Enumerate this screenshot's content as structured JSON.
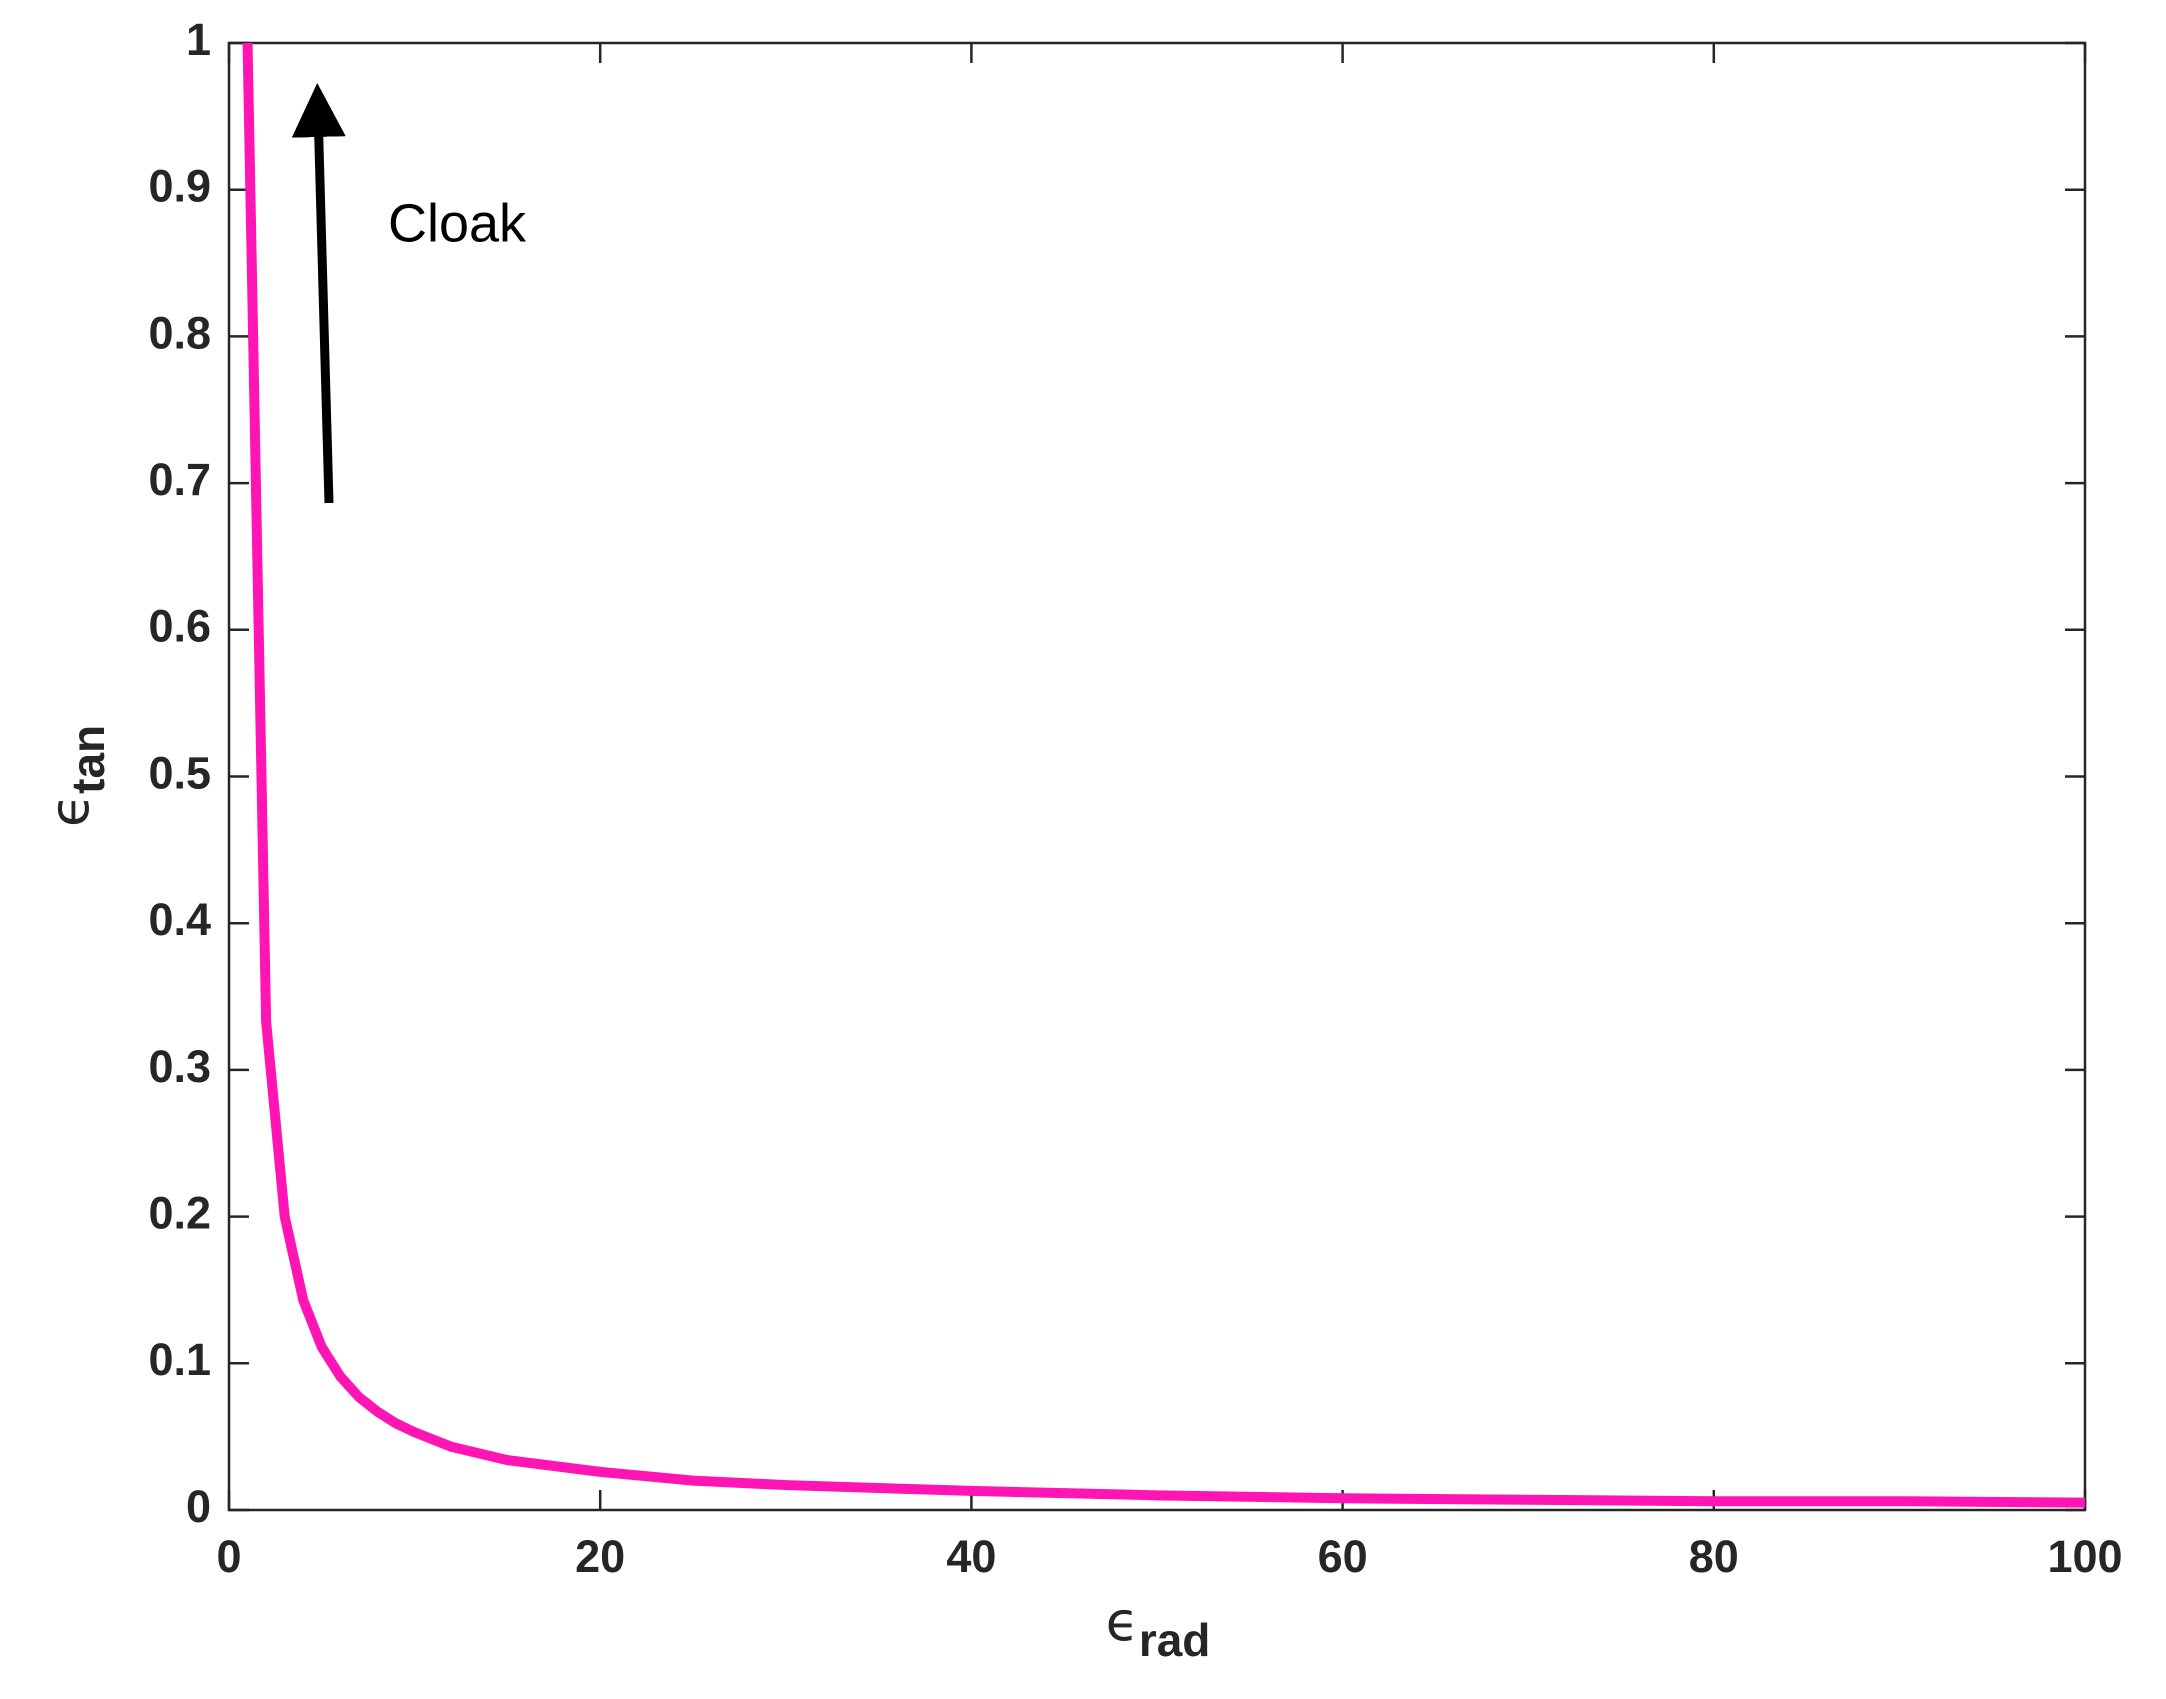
{
  "chart_data": {
    "type": "line",
    "x_label": "ϵ",
    "x_label_sub": "rad",
    "y_label": "ϵ",
    "y_label_sub": "tan",
    "annotation": "Cloak",
    "x": [
      1,
      2,
      3,
      4,
      5,
      6,
      7,
      8,
      9,
      10,
      12,
      15,
      20,
      25,
      30,
      40,
      50,
      60,
      70,
      80,
      90,
      100
    ],
    "series": [
      {
        "color": "#ff14b4",
        "values": [
          1,
          0.333,
          0.2,
          0.143,
          0.111,
          0.091,
          0.077,
          0.067,
          0.059,
          0.053,
          0.043,
          0.034,
          0.026,
          0.02,
          0.017,
          0.013,
          0.01,
          0.008,
          0.007,
          0.006,
          0.006,
          0.005
        ]
      }
    ],
    "xlim": [
      0,
      100
    ],
    "xticks": [
      0,
      20,
      40,
      60,
      80,
      100
    ],
    "ylim": [
      0,
      1
    ],
    "yticks": [
      0,
      0.1,
      0.2,
      0.3,
      0.4,
      0.5,
      0.6,
      0.7,
      0.8,
      0.9,
      1
    ],
    "grid": false
  }
}
